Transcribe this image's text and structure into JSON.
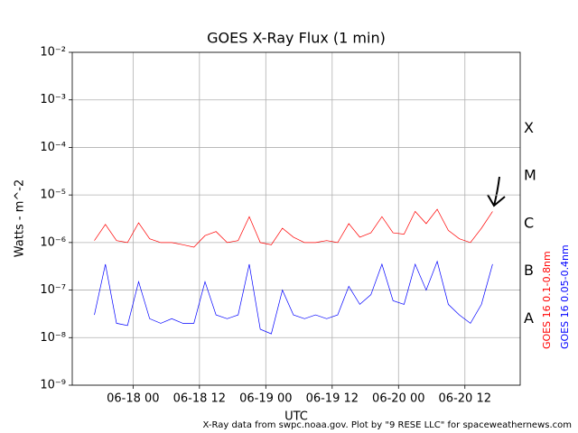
{
  "chart_data": {
    "type": "line",
    "title": "GOES X-Ray Flux (1 min)",
    "x_label": "UTC",
    "y_label": "Watts - m^-2",
    "footer": "X-Ray data from swpc.noaa.gov. Plot by \"9 RESE LLC\" for spaceweathernews.com",
    "x": [
      "06-17 17",
      "06-17 19",
      "06-17 21",
      "06-17 23",
      "06-18 01",
      "06-18 03",
      "06-18 05",
      "06-18 07",
      "06-18 09",
      "06-18 11",
      "06-18 13",
      "06-18 15",
      "06-18 17",
      "06-18 19",
      "06-18 21",
      "06-18 23",
      "06-19 01",
      "06-19 03",
      "06-19 05",
      "06-19 07",
      "06-19 09",
      "06-19 11",
      "06-19 13",
      "06-19 15",
      "06-19 17",
      "06-19 19",
      "06-19 21",
      "06-19 23",
      "06-20 01",
      "06-20 03",
      "06-20 05",
      "06-20 07",
      "06-20 09",
      "06-20 11",
      "06-20 13",
      "06-20 15",
      "06-20 17"
    ],
    "series": [
      {
        "name": "GOES 16 0.1-0.8nm",
        "color": "#ff0000",
        "values": [
          1.1e-06,
          2.4e-06,
          1.1e-06,
          1e-06,
          2.6e-06,
          1.2e-06,
          1e-06,
          1e-06,
          9e-07,
          8e-07,
          1.4e-06,
          1.7e-06,
          1e-06,
          1.1e-06,
          3.5e-06,
          1e-06,
          9e-07,
          2e-06,
          1.3e-06,
          1e-06,
          1e-06,
          1.1e-06,
          1e-06,
          2.5e-06,
          1.3e-06,
          1.6e-06,
          3.5e-06,
          1.6e-06,
          1.5e-06,
          4.5e-06,
          2.5e-06,
          5e-06,
          1.8e-06,
          1.2e-06,
          1e-06,
          2e-06,
          4.5e-06
        ]
      },
      {
        "name": "GOES 16 0.05-0.4nm",
        "color": "#0000ff",
        "values": [
          3e-08,
          3.5e-07,
          2e-08,
          1.8e-08,
          1.5e-07,
          2.5e-08,
          2e-08,
          2.5e-08,
          2e-08,
          2e-08,
          1.5e-07,
          3e-08,
          2.5e-08,
          3e-08,
          3.5e-07,
          1.5e-08,
          1.2e-08,
          1e-07,
          3e-08,
          2.5e-08,
          3e-08,
          2.5e-08,
          3e-08,
          1.2e-07,
          5e-08,
          8e-08,
          3.5e-07,
          6e-08,
          5e-08,
          3.5e-07,
          1e-07,
          4e-07,
          5e-08,
          3e-08,
          2e-08,
          5e-08,
          3.5e-07
        ]
      }
    ],
    "log_y": true,
    "grid": true,
    "xlim": [
      "06-17 13",
      "06-20 22"
    ],
    "xticks": [
      "06-18 00",
      "06-18 12",
      "06-19 00",
      "06-19 12",
      "06-20 00",
      "06-20 12"
    ],
    "ylim": [
      1e-09,
      0.01
    ],
    "yticks": [
      {
        "value": 1e-09,
        "label": "10⁻⁹"
      },
      {
        "value": 1e-08,
        "label": "10⁻⁸"
      },
      {
        "value": 1e-07,
        "label": "10⁻⁷"
      },
      {
        "value": 1e-06,
        "label": "10⁻⁶"
      },
      {
        "value": 1e-05,
        "label": "10⁻⁵"
      },
      {
        "value": 0.0001,
        "label": "10⁻⁴"
      },
      {
        "value": 0.001,
        "label": "10⁻³"
      },
      {
        "value": 0.01,
        "label": "10⁻²"
      }
    ],
    "flare_classes": [
      {
        "label": "A",
        "value": 1e-08
      },
      {
        "label": "B",
        "value": 1e-07
      },
      {
        "label": "C",
        "value": 1e-06
      },
      {
        "label": "M",
        "value": 1e-05
      },
      {
        "label": "X",
        "value": 0.0001
      }
    ]
  }
}
